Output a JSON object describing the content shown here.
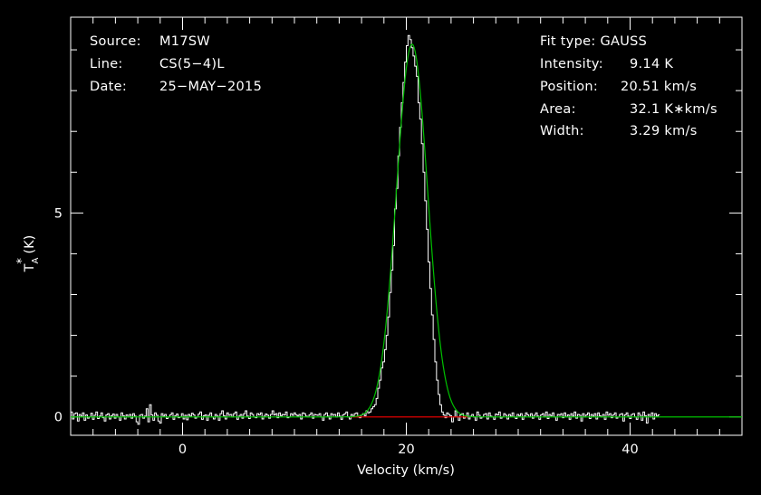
{
  "chart_data": {
    "type": "line",
    "title": "",
    "xlabel": "Velocity (km/s)",
    "ylabel_main": "T",
    "ylabel_sub": "A",
    "ylabel_sup": "*",
    "ylabel_unit": " (K)",
    "xlim": [
      -10,
      50
    ],
    "ylim": [
      -0.45,
      9.8
    ],
    "x_ticks": [
      {
        "value": 0,
        "label": "0"
      },
      {
        "value": 20,
        "label": "20"
      },
      {
        "value": 40,
        "label": "40"
      }
    ],
    "y_ticks": [
      {
        "value": 0,
        "label": "0"
      },
      {
        "value": 5,
        "label": "5"
      }
    ],
    "grid": false,
    "series": [
      {
        "type": "step",
        "color": "#ffffff",
        "x_start": -10.0,
        "x_step": 0.15,
        "values": [
          0.12,
          -0.05,
          0.08,
          0.1,
          -0.1,
          0.06,
          0.02,
          0.1,
          -0.08,
          0.05,
          -0.03,
          0.0,
          0.09,
          -0.06,
          0.04,
          0.12,
          -0.04,
          0.02,
          0.1,
          -0.02,
          -0.1,
          0.05,
          0.08,
          -0.05,
          0.03,
          0.07,
          -0.03,
          0.06,
          0.0,
          -0.08,
          0.1,
          0.03,
          -0.05,
          0.05,
          0.0,
          0.06,
          -0.03,
          0.08,
          0.02,
          -0.12,
          -0.18,
          0.04,
          0.06,
          -0.03,
          0.02,
          0.2,
          -0.12,
          0.3,
          0.05,
          -0.08,
          0.1,
          0.04,
          -0.1,
          -0.15,
          0.08,
          0.02,
          0.06,
          -0.04,
          0.0,
          0.05,
          0.1,
          -0.06,
          0.03,
          0.07,
          -0.02,
          0.0,
          0.08,
          -0.05,
          0.04,
          -0.07,
          0.06,
          0.02,
          0.09,
          0.05,
          -0.03,
          0.0,
          0.07,
          0.12,
          -0.06,
          0.03,
          0.05,
          -0.08,
          0.04,
          0.1,
          0.0,
          -0.05,
          0.06,
          0.02,
          -0.08,
          0.08,
          0.15,
          0.03,
          -0.05,
          0.1,
          0.04,
          0.06,
          0.0,
          0.08,
          0.12,
          -0.06,
          0.02,
          0.06,
          -0.03,
          0.08,
          0.15,
          0.02,
          -0.04,
          0.1,
          0.06,
          0.0,
          -0.02,
          0.08,
          0.05,
          0.1,
          -0.05,
          0.02,
          0.07,
          0.04,
          -0.03,
          0.06,
          0.15,
          0.05,
          0.08,
          -0.02,
          0.1,
          0.03,
          0.06,
          0.05,
          0.12,
          -0.02,
          0.0,
          0.08,
          0.04,
          0.1,
          0.05,
          0.02,
          0.06,
          -0.05,
          0.1,
          0.08,
          0.02,
          0.0,
          0.05,
          0.1,
          -0.03,
          0.06,
          0.05,
          0.04,
          0.08,
          0.0,
          -0.08,
          0.06,
          0.1,
          0.02,
          -0.05,
          0.08,
          0.04,
          0.06,
          0.0,
          0.1,
          0.02,
          -0.06,
          0.05,
          0.08,
          0.12,
          0.0,
          -0.05,
          0.06,
          0.02,
          0.08,
          0.1,
          0.0,
          -0.02,
          0.05,
          0.08,
          0.03,
          0.15,
          0.1,
          0.12,
          0.2,
          0.25,
          0.3,
          0.45,
          0.7,
          0.9,
          1.2,
          1.35,
          1.65,
          2.0,
          2.45,
          3.05,
          3.6,
          4.2,
          5.1,
          5.6,
          6.4,
          7.1,
          7.7,
          8.2,
          8.7,
          9.1,
          9.35,
          9.25,
          9.05,
          8.85,
          8.6,
          8.35,
          7.7,
          7.3,
          6.7,
          6.0,
          5.3,
          4.6,
          3.8,
          3.15,
          2.5,
          1.9,
          1.35,
          0.9,
          0.55,
          0.3,
          0.12,
          0.05,
          -0.02,
          0.1,
          0.06,
          0.03,
          -0.12,
          0.0,
          0.15,
          0.0,
          -0.08,
          0.05,
          0.08,
          -0.03,
          0.0,
          0.1,
          -0.05,
          0.02,
          0.06,
          0.0,
          -0.08,
          0.12,
          0.04,
          -0.03,
          0.0,
          0.06,
          0.08,
          -0.05,
          0.1,
          0.02,
          0.0,
          -0.06,
          0.07,
          0.05,
          0.12,
          -0.03,
          0.0,
          0.08,
          0.04,
          -0.05,
          0.06,
          0.02,
          0.1,
          0.0,
          -0.04,
          0.06,
          0.03,
          0.08,
          -0.06,
          0.02,
          0.1,
          0.05,
          0.0,
          0.08,
          -0.03,
          0.04,
          0.1,
          0.02,
          -0.06,
          0.05,
          0.08,
          0.0,
          0.12,
          -0.04,
          0.06,
          0.03,
          0.1,
          0.0,
          -0.08,
          0.06,
          0.04,
          0.08,
          -0.02,
          0.1,
          0.0,
          0.05,
          -0.06,
          0.08,
          0.02,
          0.12,
          -0.03,
          0.06,
          0.04,
          -0.1,
          0.08,
          0.0,
          0.05,
          0.1,
          -0.04,
          0.06,
          0.02,
          0.08,
          -0.05,
          0.1,
          0.03,
          0.0,
          0.06,
          -0.06,
          0.12,
          0.04,
          0.08,
          -0.02,
          0.05,
          0.1,
          -0.03,
          0.0,
          0.06,
          0.08,
          -0.1,
          0.05,
          0.1,
          0.02,
          -0.04,
          0.06,
          0.08,
          0.0,
          -0.06,
          0.1,
          0.04,
          -0.08,
          0.12,
          0.03,
          -0.15,
          0.06,
          0.0,
          0.1,
          -0.05,
          0.08,
          0.02,
          0.05
        ]
      },
      {
        "type": "gaussian_fit",
        "color": "#00c000",
        "amplitude": 9.14,
        "center": 20.51,
        "fwhm": 3.29
      },
      {
        "type": "baseline",
        "color": "#e00000",
        "x_range": [
          15.0,
          25.5
        ],
        "value": 0
      }
    ],
    "annotations": {
      "left": [
        {
          "label": "Source:",
          "value": "M17SW"
        },
        {
          "label": "Line:",
          "value": "CS(5−4)L"
        },
        {
          "label": "Date:",
          "value": "25−MAY−2015"
        }
      ],
      "right_title": "Fit type:  GAUSS",
      "right": [
        {
          "label": "Intensity:",
          "value": "9.14 K"
        },
        {
          "label": "Position:",
          "value": "20.51 km/s"
        },
        {
          "label": "Area:",
          "value": "32.1 K∗km/s"
        },
        {
          "label": "Width:",
          "value": "3.29 km/s"
        }
      ]
    }
  }
}
